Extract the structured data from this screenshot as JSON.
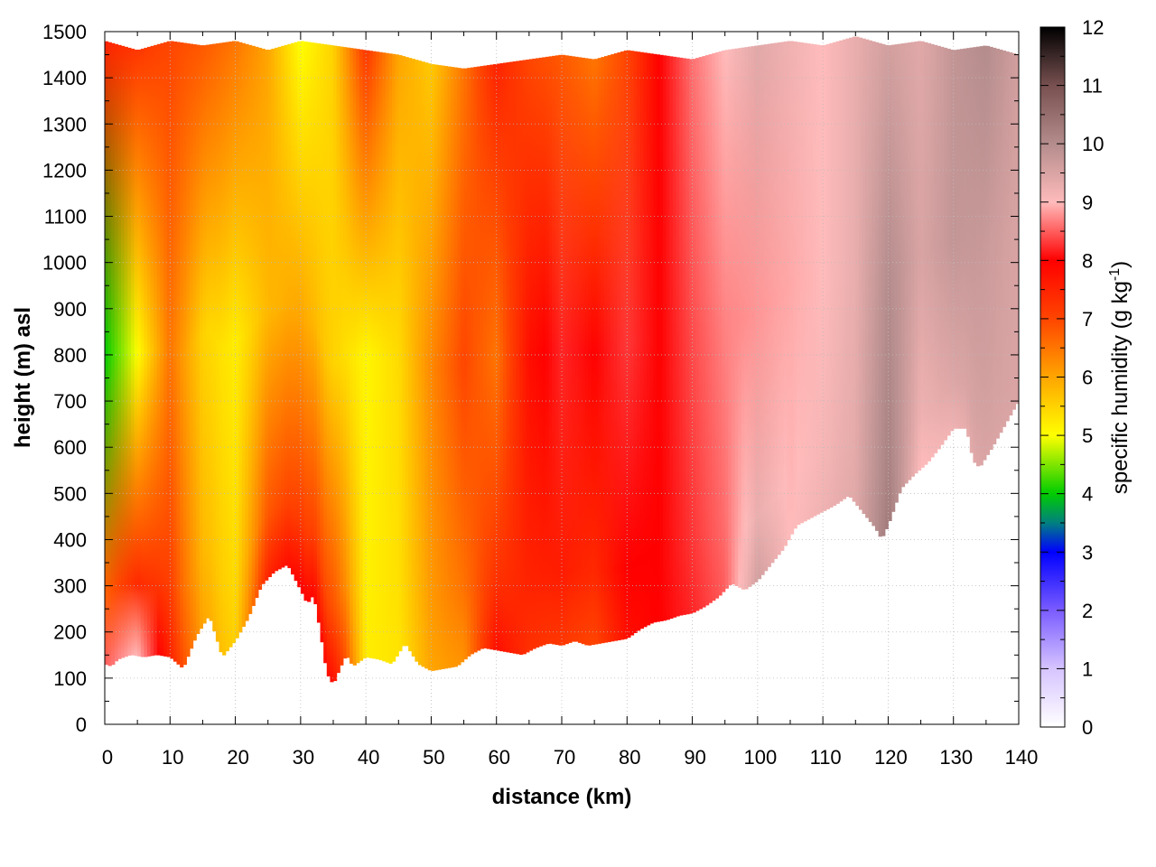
{
  "chart_data": {
    "type": "heatmap",
    "title": "",
    "xlabel": "distance (km)",
    "ylabel": "height (m) asl",
    "xlim": [
      0,
      140
    ],
    "ylim": [
      0,
      1500
    ],
    "x_ticks": [
      0,
      10,
      20,
      30,
      40,
      50,
      60,
      70,
      80,
      90,
      100,
      110,
      120,
      130,
      140
    ],
    "y_ticks": [
      0,
      100,
      200,
      300,
      400,
      500,
      600,
      700,
      800,
      900,
      1000,
      1100,
      1200,
      1300,
      1400,
      1500
    ],
    "grid": true,
    "colorbar": {
      "label_text": "specific humidity (g kg",
      "label_exponent": "-1",
      "label_close": ")",
      "range": [
        0,
        12
      ],
      "ticks": [
        0,
        1,
        2,
        3,
        4,
        5,
        6,
        7,
        8,
        9,
        10,
        11,
        12
      ],
      "stops": [
        {
          "value": 0,
          "color": "#ffffff"
        },
        {
          "value": 1,
          "color": "#d6c4ff"
        },
        {
          "value": 2,
          "color": "#7a5cff"
        },
        {
          "value": 3,
          "color": "#0000ff"
        },
        {
          "value": 3.5,
          "color": "#008080"
        },
        {
          "value": 4,
          "color": "#00cc00"
        },
        {
          "value": 5,
          "color": "#ffff00"
        },
        {
          "value": 6,
          "color": "#ffa500"
        },
        {
          "value": 7,
          "color": "#ff4500"
        },
        {
          "value": 8,
          "color": "#ff0000"
        },
        {
          "value": 9,
          "color": "#ffbbbb"
        },
        {
          "value": 10,
          "color": "#b48c8c"
        },
        {
          "value": 11,
          "color": "#785050"
        },
        {
          "value": 12,
          "color": "#000000"
        }
      ]
    },
    "surface_height": [
      {
        "x": 0,
        "y": 130
      },
      {
        "x": 1,
        "y": 125
      },
      {
        "x": 2,
        "y": 140
      },
      {
        "x": 4,
        "y": 150
      },
      {
        "x": 6,
        "y": 145
      },
      {
        "x": 8,
        "y": 150
      },
      {
        "x": 10,
        "y": 145
      },
      {
        "x": 12,
        "y": 120
      },
      {
        "x": 14,
        "y": 190
      },
      {
        "x": 16,
        "y": 235
      },
      {
        "x": 18,
        "y": 145
      },
      {
        "x": 20,
        "y": 180
      },
      {
        "x": 22,
        "y": 230
      },
      {
        "x": 24,
        "y": 300
      },
      {
        "x": 26,
        "y": 330
      },
      {
        "x": 28,
        "y": 345
      },
      {
        "x": 30,
        "y": 290
      },
      {
        "x": 31,
        "y": 260
      },
      {
        "x": 32,
        "y": 280
      },
      {
        "x": 33,
        "y": 200
      },
      {
        "x": 34,
        "y": 110
      },
      {
        "x": 35,
        "y": 85
      },
      {
        "x": 36,
        "y": 120
      },
      {
        "x": 37,
        "y": 150
      },
      {
        "x": 38,
        "y": 125
      },
      {
        "x": 40,
        "y": 145
      },
      {
        "x": 42,
        "y": 140
      },
      {
        "x": 44,
        "y": 130
      },
      {
        "x": 46,
        "y": 175
      },
      {
        "x": 48,
        "y": 130
      },
      {
        "x": 50,
        "y": 115
      },
      {
        "x": 52,
        "y": 120
      },
      {
        "x": 54,
        "y": 125
      },
      {
        "x": 56,
        "y": 150
      },
      {
        "x": 58,
        "y": 165
      },
      {
        "x": 60,
        "y": 160
      },
      {
        "x": 62,
        "y": 155
      },
      {
        "x": 64,
        "y": 150
      },
      {
        "x": 66,
        "y": 165
      },
      {
        "x": 68,
        "y": 175
      },
      {
        "x": 70,
        "y": 170
      },
      {
        "x": 72,
        "y": 180
      },
      {
        "x": 74,
        "y": 170
      },
      {
        "x": 76,
        "y": 175
      },
      {
        "x": 78,
        "y": 180
      },
      {
        "x": 80,
        "y": 185
      },
      {
        "x": 82,
        "y": 205
      },
      {
        "x": 84,
        "y": 220
      },
      {
        "x": 86,
        "y": 225
      },
      {
        "x": 88,
        "y": 235
      },
      {
        "x": 90,
        "y": 240
      },
      {
        "x": 92,
        "y": 255
      },
      {
        "x": 94,
        "y": 275
      },
      {
        "x": 96,
        "y": 305
      },
      {
        "x": 98,
        "y": 290
      },
      {
        "x": 100,
        "y": 310
      },
      {
        "x": 102,
        "y": 345
      },
      {
        "x": 104,
        "y": 380
      },
      {
        "x": 106,
        "y": 430
      },
      {
        "x": 108,
        "y": 445
      },
      {
        "x": 110,
        "y": 460
      },
      {
        "x": 112,
        "y": 475
      },
      {
        "x": 114,
        "y": 495
      },
      {
        "x": 116,
        "y": 460
      },
      {
        "x": 118,
        "y": 425
      },
      {
        "x": 119,
        "y": 400
      },
      {
        "x": 120,
        "y": 430
      },
      {
        "x": 122,
        "y": 510
      },
      {
        "x": 124,
        "y": 540
      },
      {
        "x": 126,
        "y": 565
      },
      {
        "x": 128,
        "y": 600
      },
      {
        "x": 130,
        "y": 640
      },
      {
        "x": 132,
        "y": 640
      },
      {
        "x": 133,
        "y": 570
      },
      {
        "x": 134,
        "y": 555
      },
      {
        "x": 136,
        "y": 600
      },
      {
        "x": 138,
        "y": 650
      },
      {
        "x": 140,
        "y": 700
      }
    ],
    "top_height": [
      {
        "x": 0,
        "y": 1480
      },
      {
        "x": 5,
        "y": 1460
      },
      {
        "x": 10,
        "y": 1480
      },
      {
        "x": 15,
        "y": 1470
      },
      {
        "x": 20,
        "y": 1480
      },
      {
        "x": 25,
        "y": 1460
      },
      {
        "x": 30,
        "y": 1480
      },
      {
        "x": 35,
        "y": 1470
      },
      {
        "x": 40,
        "y": 1460
      },
      {
        "x": 45,
        "y": 1450
      },
      {
        "x": 50,
        "y": 1430
      },
      {
        "x": 55,
        "y": 1420
      },
      {
        "x": 60,
        "y": 1430
      },
      {
        "x": 65,
        "y": 1440
      },
      {
        "x": 70,
        "y": 1450
      },
      {
        "x": 75,
        "y": 1440
      },
      {
        "x": 80,
        "y": 1460
      },
      {
        "x": 85,
        "y": 1450
      },
      {
        "x": 90,
        "y": 1440
      },
      {
        "x": 95,
        "y": 1460
      },
      {
        "x": 100,
        "y": 1470
      },
      {
        "x": 105,
        "y": 1480
      },
      {
        "x": 110,
        "y": 1470
      },
      {
        "x": 115,
        "y": 1490
      },
      {
        "x": 120,
        "y": 1470
      },
      {
        "x": 125,
        "y": 1480
      },
      {
        "x": 130,
        "y": 1460
      },
      {
        "x": 135,
        "y": 1470
      },
      {
        "x": 140,
        "y": 1450
      }
    ],
    "humidity_by_distance": [
      {
        "x": 0,
        "near_surface": 8.5,
        "mid_level": 4.0,
        "upper_level": 7.5
      },
      {
        "x": 5,
        "near_surface": 9.0,
        "mid_level": 5.0,
        "upper_level": 7.2
      },
      {
        "x": 10,
        "near_surface": 7.5,
        "mid_level": 6.5,
        "upper_level": 7.0
      },
      {
        "x": 15,
        "near_surface": 6.0,
        "mid_level": 5.5,
        "upper_level": 6.8
      },
      {
        "x": 20,
        "near_surface": 5.5,
        "mid_level": 5.2,
        "upper_level": 6.5
      },
      {
        "x": 25,
        "near_surface": 7.5,
        "mid_level": 5.8,
        "upper_level": 6.0
      },
      {
        "x": 30,
        "near_surface": 8.0,
        "mid_level": 6.0,
        "upper_level": 5.0
      },
      {
        "x": 35,
        "near_surface": 7.8,
        "mid_level": 5.5,
        "upper_level": 5.5
      },
      {
        "x": 40,
        "near_surface": 5.2,
        "mid_level": 5.1,
        "upper_level": 7.2
      },
      {
        "x": 45,
        "near_surface": 5.3,
        "mid_level": 5.4,
        "upper_level": 6.0
      },
      {
        "x": 50,
        "near_surface": 6.0,
        "mid_level": 6.3,
        "upper_level": 5.6
      },
      {
        "x": 55,
        "near_surface": 6.2,
        "mid_level": 7.0,
        "upper_level": 6.5
      },
      {
        "x": 60,
        "near_surface": 7.8,
        "mid_level": 6.5,
        "upper_level": 7.5
      },
      {
        "x": 65,
        "near_surface": 7.3,
        "mid_level": 7.8,
        "upper_level": 7.0
      },
      {
        "x": 70,
        "near_surface": 7.2,
        "mid_level": 8.2,
        "upper_level": 6.8
      },
      {
        "x": 75,
        "near_surface": 7.0,
        "mid_level": 8.0,
        "upper_level": 6.5
      },
      {
        "x": 80,
        "near_surface": 7.8,
        "mid_level": 8.3,
        "upper_level": 7.0
      },
      {
        "x": 85,
        "near_surface": 8.0,
        "mid_level": 8.0,
        "upper_level": 8.0
      },
      {
        "x": 90,
        "near_surface": 8.2,
        "mid_level": 8.4,
        "upper_level": 8.6
      },
      {
        "x": 95,
        "near_surface": 8.5,
        "mid_level": 8.7,
        "upper_level": 9.0
      },
      {
        "x": 100,
        "near_surface": 9.6,
        "mid_level": 8.8,
        "upper_level": 9.4
      },
      {
        "x": 105,
        "near_surface": 9.0,
        "mid_level": 8.9,
        "upper_level": 9.2
      },
      {
        "x": 110,
        "near_surface": 9.2,
        "mid_level": 9.0,
        "upper_level": 9.0
      },
      {
        "x": 115,
        "near_surface": 9.4,
        "mid_level": 9.3,
        "upper_level": 9.3
      },
      {
        "x": 120,
        "near_surface": 10.3,
        "mid_level": 10.0,
        "upper_level": 9.6
      },
      {
        "x": 125,
        "near_surface": 9.0,
        "mid_level": 9.5,
        "upper_level": 9.4
      },
      {
        "x": 130,
        "near_surface": 9.2,
        "mid_level": 9.8,
        "upper_level": 9.8
      },
      {
        "x": 135,
        "near_surface": 9.5,
        "mid_level": 9.7,
        "upper_level": 10.0
      },
      {
        "x": 140,
        "near_surface": 9.5,
        "mid_level": 9.5,
        "upper_level": 9.6
      }
    ]
  }
}
